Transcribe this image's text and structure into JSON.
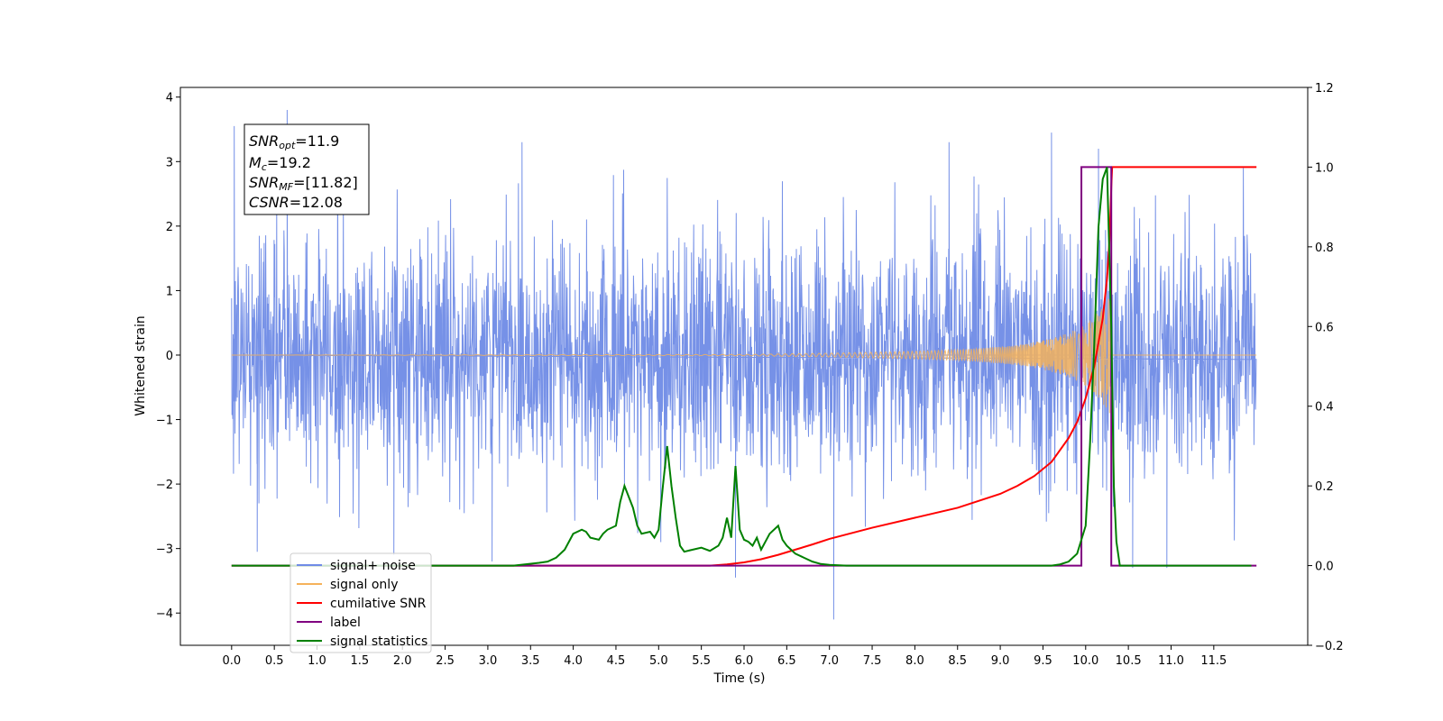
{
  "chart_data": {
    "type": "line",
    "xlabel": "Time (s)",
    "ylabel": "Whitened strain",
    "xlim": [
      -0.6,
      12.6
    ],
    "ylim": [
      -4.5,
      4.15
    ],
    "y2lim": [
      -0.2,
      1.2
    ],
    "x_ticks": [
      "0.0",
      "0.5",
      "1.0",
      "1.5",
      "2.0",
      "2.5",
      "3.0",
      "3.5",
      "4.0",
      "4.5",
      "5.0",
      "5.5",
      "6.0",
      "6.5",
      "7.0",
      "7.5",
      "8.0",
      "8.5",
      "9.0",
      "9.5",
      "10.0",
      "10.5",
      "11.0",
      "11.5"
    ],
    "y_ticks": [
      "4",
      "3",
      "2",
      "1",
      "0",
      "−1",
      "−2",
      "−3",
      "−4"
    ],
    "y2_ticks": [
      "1.2",
      "1.0",
      "0.8",
      "0.6",
      "0.4",
      "0.2",
      "0.0",
      "−0.2"
    ],
    "annotation": {
      "snr_opt": {
        "sym": "SNR",
        "sub": "opt",
        "val": "=11.9"
      },
      "mc": {
        "sym": "M",
        "sub": "c",
        "val": "=19.2"
      },
      "snr_mf": {
        "sym": "SNR",
        "sub": "MF",
        "val": "=[11.82]"
      },
      "csnr": {
        "sym": "CSNR",
        "val": "=12.08"
      }
    },
    "legend": {
      "placement": "lower-left",
      "entries": [
        {
          "label": "signal+ noise",
          "color": "#6f8be6"
        },
        {
          "label": "signal only",
          "color": "#f5b25a"
        },
        {
          "label": "cumilative SNR",
          "color": "#ff0000"
        },
        {
          "label": "label",
          "color": "#800080"
        },
        {
          "label": "signal statistics",
          "color": "#008000"
        }
      ]
    },
    "series": [
      {
        "name": "signal+ noise",
        "axis": "left",
        "color": "#6f8be6",
        "t_start": 0.0,
        "t_end": 12.0,
        "band_sigma": 1.0,
        "spikes": [
          [
            0.03,
            3.55
          ],
          [
            0.65,
            3.8
          ],
          [
            0.3,
            -3.05
          ],
          [
            1.9,
            -3.1
          ],
          [
            3.05,
            -3.2
          ],
          [
            3.4,
            3.3
          ],
          [
            5.9,
            -3.45
          ],
          [
            7.05,
            -4.1
          ],
          [
            8.4,
            3.3
          ],
          [
            9.6,
            3.45
          ],
          [
            10.15,
            3.2
          ],
          [
            10.55,
            -3.3
          ],
          [
            10.95,
            -3.3
          ]
        ]
      },
      {
        "name": "signal only",
        "axis": "left",
        "color": "#f5b25a",
        "t_start": 0.0,
        "t_merge": 10.3,
        "t_end": 12.0,
        "envelope": [
          [
            0,
            0
          ],
          [
            6.0,
            0.01
          ],
          [
            7.0,
            0.03
          ],
          [
            8.0,
            0.06
          ],
          [
            8.5,
            0.08
          ],
          [
            9.0,
            0.13
          ],
          [
            9.3,
            0.17
          ],
          [
            9.6,
            0.26
          ],
          [
            9.8,
            0.34
          ],
          [
            10.0,
            0.48
          ],
          [
            10.1,
            0.6
          ],
          [
            10.2,
            0.75
          ],
          [
            10.28,
            0.9
          ],
          [
            10.3,
            0.95
          ]
        ]
      },
      {
        "name": "cumilative SNR",
        "axis": "right",
        "color": "#ff0000",
        "x": [
          0,
          5.6,
          5.8,
          6.0,
          6.2,
          6.4,
          6.6,
          6.8,
          7.0,
          7.5,
          8.0,
          8.5,
          9.0,
          9.2,
          9.4,
          9.6,
          9.8,
          9.9,
          10.0,
          10.1,
          10.2,
          10.25,
          10.28,
          10.3,
          10.31,
          12.0
        ],
        "y": [
          0,
          0,
          0.003,
          0.008,
          0.016,
          0.027,
          0.04,
          0.053,
          0.067,
          0.095,
          0.12,
          0.145,
          0.18,
          0.2,
          0.225,
          0.26,
          0.32,
          0.36,
          0.42,
          0.5,
          0.62,
          0.72,
          0.82,
          0.95,
          1.0,
          1.0
        ]
      },
      {
        "name": "label",
        "axis": "right",
        "color": "#800080",
        "x": [
          0,
          9.95,
          9.95,
          10.3,
          10.3,
          12.0
        ],
        "y": [
          0,
          0,
          1,
          1,
          0,
          0
        ]
      },
      {
        "name": "signal statistics",
        "axis": "right",
        "color": "#008000",
        "x": [
          0,
          3.3,
          3.6,
          3.7,
          3.8,
          3.9,
          4.0,
          4.1,
          4.15,
          4.2,
          4.3,
          4.35,
          4.4,
          4.5,
          4.55,
          4.6,
          4.7,
          4.75,
          4.8,
          4.9,
          4.95,
          5.0,
          5.05,
          5.1,
          5.15,
          5.2,
          5.25,
          5.3,
          5.4,
          5.5,
          5.6,
          5.7,
          5.75,
          5.8,
          5.85,
          5.9,
          5.95,
          6.0,
          6.05,
          6.1,
          6.15,
          6.2,
          6.3,
          6.4,
          6.45,
          6.5,
          6.55,
          6.6,
          6.7,
          6.8,
          6.9,
          7.0,
          7.2,
          9.6,
          9.7,
          9.8,
          9.9,
          10.0,
          10.05,
          10.1,
          10.15,
          10.2,
          10.25,
          10.3,
          10.33,
          10.36,
          10.4,
          11.94
        ],
        "y": [
          0,
          0,
          0.007,
          0.01,
          0.02,
          0.04,
          0.08,
          0.09,
          0.085,
          0.07,
          0.065,
          0.08,
          0.09,
          0.1,
          0.16,
          0.2,
          0.145,
          0.1,
          0.08,
          0.085,
          0.07,
          0.09,
          0.2,
          0.3,
          0.2,
          0.12,
          0.05,
          0.035,
          0.04,
          0.045,
          0.037,
          0.05,
          0.07,
          0.12,
          0.07,
          0.25,
          0.09,
          0.065,
          0.06,
          0.05,
          0.07,
          0.04,
          0.08,
          0.1,
          0.065,
          0.05,
          0.04,
          0.03,
          0.02,
          0.01,
          0.004,
          0.002,
          0,
          0,
          0.003,
          0.01,
          0.03,
          0.1,
          0.3,
          0.55,
          0.85,
          0.97,
          1.0,
          0.6,
          0.2,
          0.06,
          0,
          0
        ]
      }
    ]
  }
}
